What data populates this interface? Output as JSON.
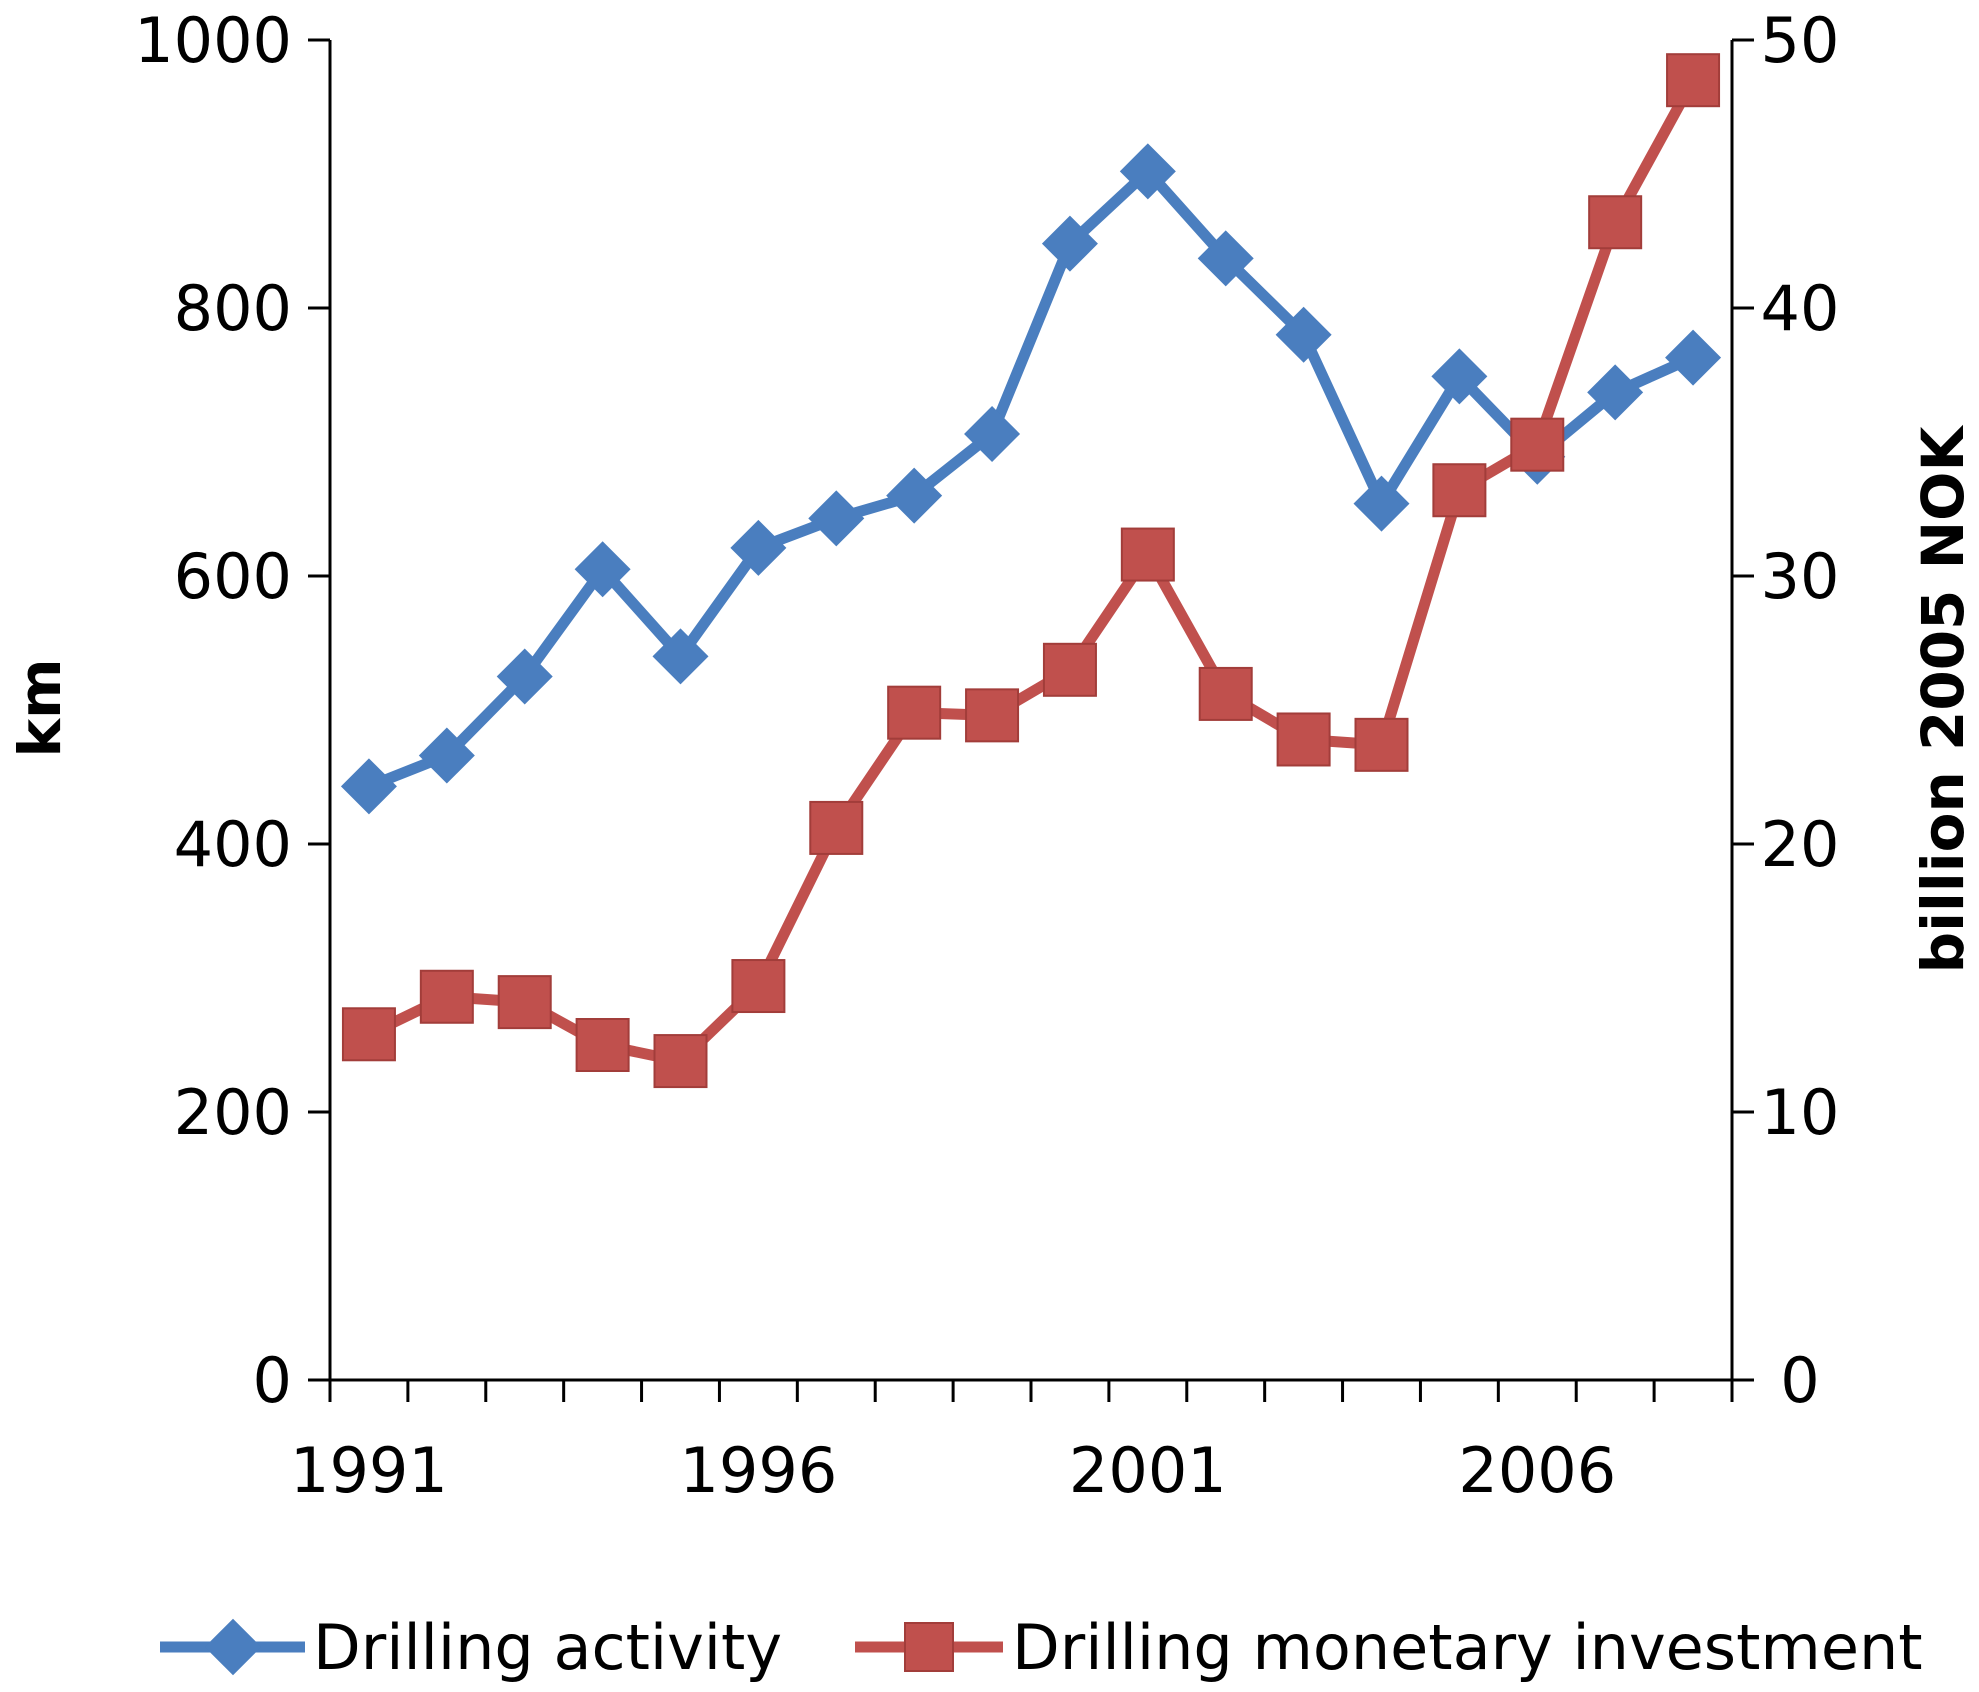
{
  "chart_data": {
    "type": "line",
    "x": [
      1991,
      1992,
      1993,
      1994,
      1995,
      1996,
      1997,
      1998,
      1999,
      2000,
      2001,
      2002,
      2003,
      2004,
      2005,
      2006,
      2007,
      2008
    ],
    "x_tick_labels": [
      "1991",
      "1996",
      "2001",
      "2006"
    ],
    "x_tick_values": [
      1991,
      1996,
      2001,
      2006
    ],
    "xlim": [
      1990.5,
      2008.5
    ],
    "ylabel_left": "km",
    "ylabel_right": "billion 2005 NOK",
    "ylim_left": [
      0,
      1000
    ],
    "ylim_right": [
      0,
      50
    ],
    "y_ticks_left": [
      "0",
      "200",
      "400",
      "600",
      "800",
      "1000"
    ],
    "y_ticks_right": [
      "0",
      "10",
      "20",
      "30",
      "40",
      "50"
    ],
    "series": [
      {
        "name": "Drilling activity",
        "axis": "left",
        "color": "#4a7ebf",
        "marker": "diamond",
        "values": [
          443,
          466,
          525,
          605,
          540,
          621,
          643,
          660,
          706,
          848,
          902,
          837,
          780,
          654,
          749,
          689,
          737,
          763
        ]
      },
      {
        "name": "Drilling monetary investment",
        "axis": "right",
        "color": "#c0504d",
        "marker": "square",
        "values": [
          12.9,
          14.3,
          14.1,
          12.5,
          11.9,
          14.7,
          20.6,
          24.9,
          24.8,
          26.5,
          30.8,
          25.6,
          23.9,
          23.7,
          33.2,
          34.9,
          43.2,
          48.5
        ]
      }
    ]
  }
}
